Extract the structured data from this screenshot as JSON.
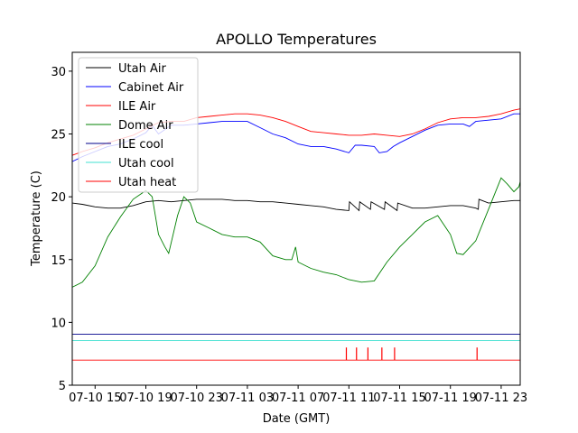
{
  "chart_data": {
    "type": "line",
    "title": "APOLLO Temperatures",
    "xlabel": "Date (GMT)",
    "ylabel": "Temperature (C)",
    "xlim": [
      12.2,
      47.5
    ],
    "ylim": [
      5,
      31.5
    ],
    "x_ticks": [
      {
        "value": 14,
        "label": "07-10 15"
      },
      {
        "value": 18,
        "label": "07-10 19"
      },
      {
        "value": 22,
        "label": "07-10 23"
      },
      {
        "value": 26,
        "label": "07-11 03"
      },
      {
        "value": 30,
        "label": "07-11 07"
      },
      {
        "value": 34,
        "label": "07-11 11"
      },
      {
        "value": 38,
        "label": "07-11 15"
      },
      {
        "value": 42,
        "label": "07-11 19"
      },
      {
        "value": 46,
        "label": "07-11 23"
      }
    ],
    "y_ticks": [
      5,
      10,
      15,
      20,
      25,
      30
    ],
    "legend_position": "top-left",
    "series": [
      {
        "name": "Utah Air",
        "color": "#000000",
        "points": [
          [
            12.2,
            19.5
          ],
          [
            13,
            19.4
          ],
          [
            14,
            19.2
          ],
          [
            15,
            19.1
          ],
          [
            16,
            19.1
          ],
          [
            17,
            19.3
          ],
          [
            18,
            19.6
          ],
          [
            19,
            19.7
          ],
          [
            20,
            19.6
          ],
          [
            21,
            19.7
          ],
          [
            22,
            19.8
          ],
          [
            23,
            19.8
          ],
          [
            24,
            19.8
          ],
          [
            25,
            19.7
          ],
          [
            26,
            19.7
          ],
          [
            27,
            19.6
          ],
          [
            28,
            19.6
          ],
          [
            29,
            19.5
          ],
          [
            30,
            19.4
          ],
          [
            31,
            19.3
          ],
          [
            32,
            19.2
          ],
          [
            33,
            19.0
          ],
          [
            34,
            18.9
          ],
          [
            34.05,
            19.6
          ],
          [
            34.8,
            18.9
          ],
          [
            34.85,
            19.6
          ],
          [
            35.7,
            19.0
          ],
          [
            35.75,
            19.6
          ],
          [
            36.8,
            19.0
          ],
          [
            36.85,
            19.6
          ],
          [
            37.8,
            18.9
          ],
          [
            37.85,
            19.5
          ],
          [
            39,
            19.1
          ],
          [
            40,
            19.1
          ],
          [
            41,
            19.2
          ],
          [
            42,
            19.3
          ],
          [
            43,
            19.3
          ],
          [
            44,
            19.1
          ],
          [
            44.2,
            19.0
          ],
          [
            44.25,
            19.8
          ],
          [
            45,
            19.5
          ],
          [
            46,
            19.6
          ],
          [
            47,
            19.7
          ],
          [
            47.5,
            19.7
          ]
        ]
      },
      {
        "name": "Cabinet Air",
        "color": "#0000ff",
        "points": [
          [
            12.2,
            22.8
          ],
          [
            13,
            23.2
          ],
          [
            14,
            23.6
          ],
          [
            15,
            24.0
          ],
          [
            16,
            24.2
          ],
          [
            17,
            24.6
          ],
          [
            18,
            25.1
          ],
          [
            18.5,
            25.7
          ],
          [
            19,
            25.0
          ],
          [
            20,
            25.7
          ],
          [
            21,
            25.7
          ],
          [
            22,
            25.8
          ],
          [
            23,
            25.9
          ],
          [
            24,
            26.0
          ],
          [
            25,
            26.0
          ],
          [
            26,
            26.0
          ],
          [
            27,
            25.5
          ],
          [
            28,
            25.0
          ],
          [
            29,
            24.7
          ],
          [
            30,
            24.2
          ],
          [
            31,
            24.0
          ],
          [
            32,
            24.0
          ],
          [
            33,
            23.8
          ],
          [
            34,
            23.5
          ],
          [
            34.5,
            24.1
          ],
          [
            35,
            24.1
          ],
          [
            36,
            24.0
          ],
          [
            36.4,
            23.5
          ],
          [
            37,
            23.6
          ],
          [
            37.5,
            24.0
          ],
          [
            38,
            24.3
          ],
          [
            39,
            24.8
          ],
          [
            40,
            25.3
          ],
          [
            41,
            25.7
          ],
          [
            42,
            25.8
          ],
          [
            43,
            25.8
          ],
          [
            43.5,
            25.6
          ],
          [
            44,
            26.0
          ],
          [
            45,
            26.1
          ],
          [
            46,
            26.2
          ],
          [
            47,
            26.6
          ],
          [
            47.5,
            26.6
          ]
        ]
      },
      {
        "name": "ILE Air",
        "color": "#ff0000",
        "points": [
          [
            12.2,
            23.3
          ],
          [
            13,
            23.6
          ],
          [
            14,
            23.9
          ],
          [
            15,
            24.3
          ],
          [
            16,
            24.6
          ],
          [
            17,
            24.9
          ],
          [
            18,
            25.4
          ],
          [
            19,
            25.9
          ],
          [
            20,
            26.0
          ],
          [
            21,
            26.0
          ],
          [
            22,
            26.3
          ],
          [
            23,
            26.4
          ],
          [
            24,
            26.5
          ],
          [
            25,
            26.6
          ],
          [
            26,
            26.6
          ],
          [
            27,
            26.5
          ],
          [
            28,
            26.3
          ],
          [
            29,
            26.0
          ],
          [
            30,
            25.6
          ],
          [
            31,
            25.2
          ],
          [
            32,
            25.1
          ],
          [
            33,
            25.0
          ],
          [
            34,
            24.9
          ],
          [
            35,
            24.9
          ],
          [
            36,
            25.0
          ],
          [
            37,
            24.9
          ],
          [
            38,
            24.8
          ],
          [
            39,
            25.0
          ],
          [
            40,
            25.4
          ],
          [
            41,
            25.9
          ],
          [
            42,
            26.2
          ],
          [
            43,
            26.3
          ],
          [
            44,
            26.3
          ],
          [
            45,
            26.4
          ],
          [
            46,
            26.6
          ],
          [
            47,
            26.9
          ],
          [
            47.5,
            27.0
          ]
        ]
      },
      {
        "name": "Dome Air",
        "color": "#008000",
        "points": [
          [
            12.2,
            12.8
          ],
          [
            13,
            13.2
          ],
          [
            14,
            14.5
          ],
          [
            15,
            16.8
          ],
          [
            16,
            18.4
          ],
          [
            17,
            19.8
          ],
          [
            18,
            20.5
          ],
          [
            18.5,
            20.0
          ],
          [
            19,
            17.0
          ],
          [
            19.5,
            16.0
          ],
          [
            19.8,
            15.5
          ],
          [
            20.5,
            18.5
          ],
          [
            21,
            20.0
          ],
          [
            21.5,
            19.5
          ],
          [
            22,
            18.0
          ],
          [
            23,
            17.5
          ],
          [
            24,
            17.0
          ],
          [
            25,
            16.8
          ],
          [
            26,
            16.8
          ],
          [
            27,
            16.4
          ],
          [
            28,
            15.3
          ],
          [
            29,
            15.0
          ],
          [
            29.5,
            15.0
          ],
          [
            29.8,
            16.0
          ],
          [
            30,
            14.8
          ],
          [
            31,
            14.3
          ],
          [
            32,
            14.0
          ],
          [
            33,
            13.8
          ],
          [
            34,
            13.4
          ],
          [
            35,
            13.2
          ],
          [
            36,
            13.3
          ],
          [
            37,
            14.8
          ],
          [
            38,
            16.0
          ],
          [
            39,
            17.0
          ],
          [
            40,
            18.0
          ],
          [
            41,
            18.5
          ],
          [
            42,
            17.0
          ],
          [
            42.5,
            15.5
          ],
          [
            43,
            15.4
          ],
          [
            44,
            16.5
          ],
          [
            45,
            19.0
          ],
          [
            46,
            21.5
          ],
          [
            46.5,
            21.0
          ],
          [
            47,
            20.4
          ],
          [
            47.4,
            20.8
          ],
          [
            47.5,
            21.2
          ]
        ]
      },
      {
        "name": "ILE cool",
        "color": "#00008b",
        "points": [
          [
            12.2,
            9.05
          ],
          [
            47.5,
            9.05
          ]
        ]
      },
      {
        "name": "Utah cool",
        "color": "#40e0d0",
        "points": [
          [
            12.2,
            8.55
          ],
          [
            47.5,
            8.55
          ]
        ]
      },
      {
        "name": "Utah heat",
        "color": "#ff0000",
        "points": [
          [
            12.2,
            7.0
          ],
          [
            47.5,
            7.0
          ]
        ],
        "spikes": [
          33.8,
          34.6,
          35.5,
          36.6,
          37.6,
          44.1
        ],
        "spike_top": 8.0
      }
    ]
  }
}
